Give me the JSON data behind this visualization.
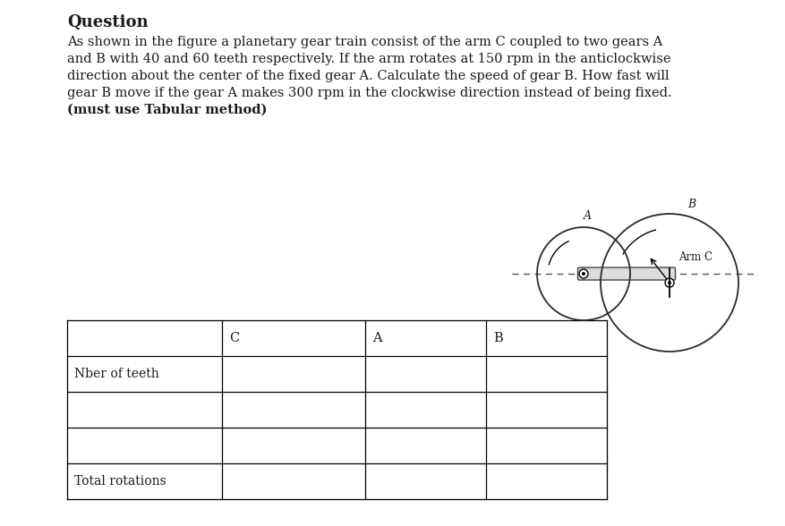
{
  "title": "Question",
  "line1": "As shown in the figure a planetary gear train consist of the arm C coupled to two gears A",
  "line2": "and B with 40 and 60 teeth respectively. If the arm rotates at 150 rpm in the anticlockwise",
  "line3": "direction about the center of the fixed gear A. Calculate the speed of gear B. How fast will",
  "line4": "gear B move if the gear A makes 300 rpm in the clockwise direction instead of being fixed.",
  "line5": "(must use Tabular method)",
  "gear_A_label": "A",
  "gear_B_label": "B",
  "arm_label": "Arm C",
  "table_col_headers": [
    "C",
    "A",
    "B"
  ],
  "table_row_labels": [
    "Nber of teeth",
    "",
    "",
    "Total rotations"
  ],
  "bg_color": "#ffffff",
  "text_color": "#1a1a1a",
  "gear_color": "#2a2a2a"
}
